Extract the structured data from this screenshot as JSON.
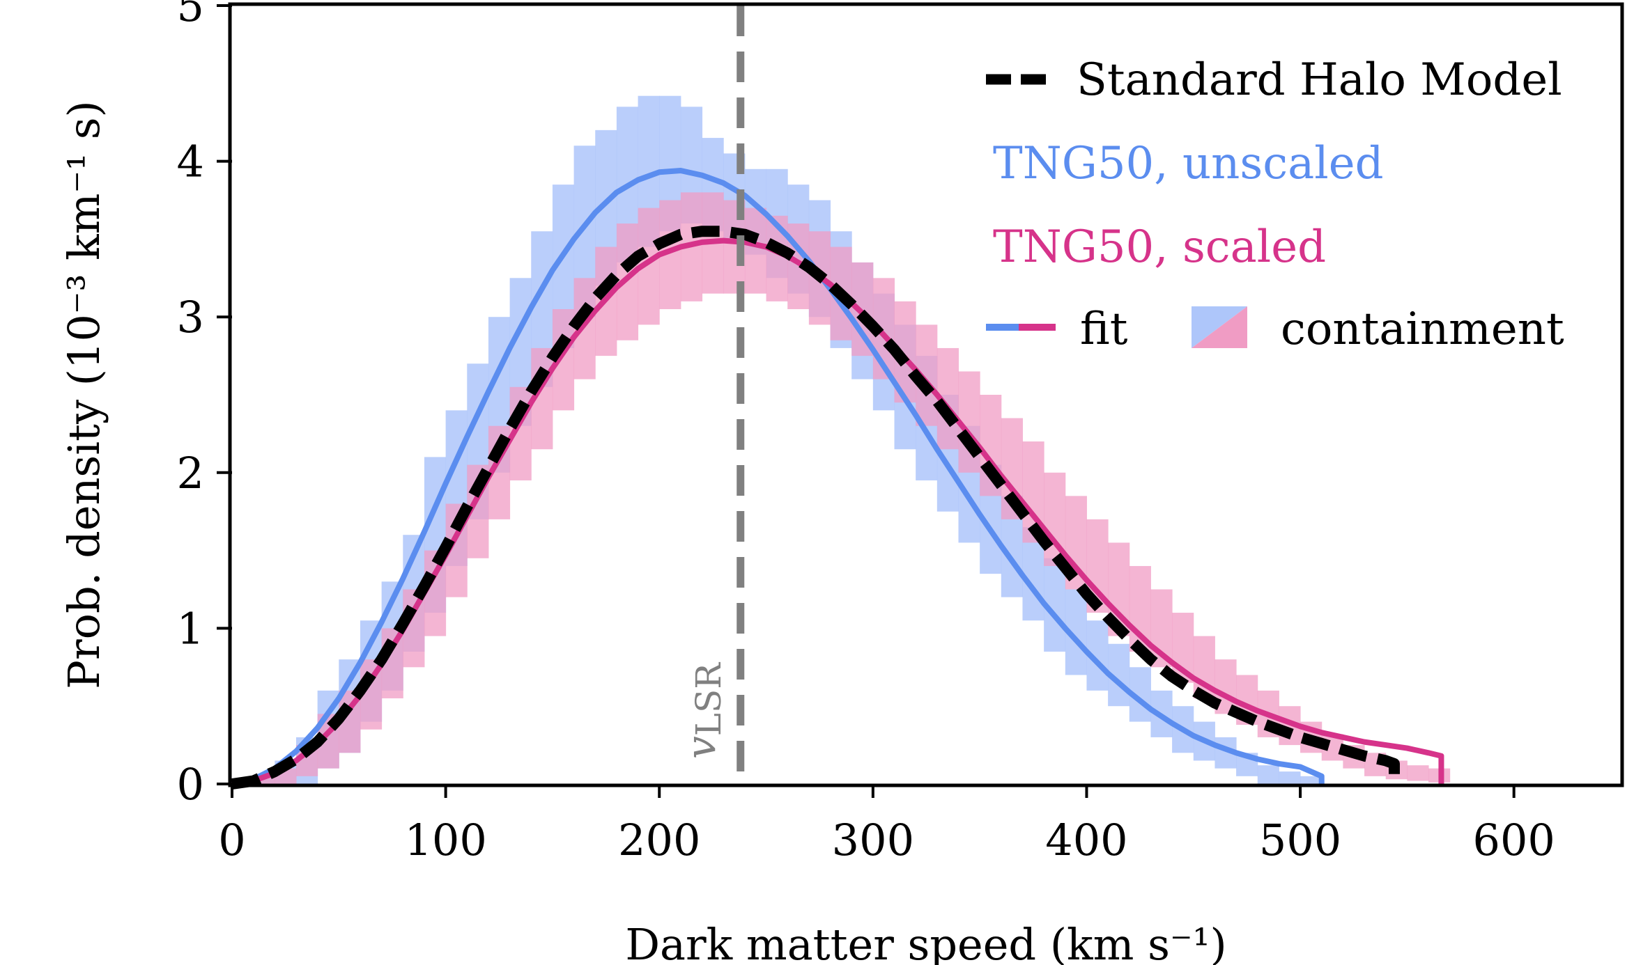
{
  "chart_data": {
    "type": "line",
    "title": "",
    "xlabel": "Dark matter speed (km s⁻¹)",
    "ylabel": "Prob. density (10⁻³ km⁻¹ s)",
    "xlim": [
      0,
      650
    ],
    "ylim": [
      0,
      5
    ],
    "xticks": [
      0,
      100,
      200,
      300,
      400,
      500,
      600
    ],
    "yticks": [
      0,
      1,
      2,
      3,
      4,
      5
    ],
    "xtick_labels": [
      "0",
      "100",
      "200",
      "300",
      "400",
      "500",
      "600"
    ],
    "ytick_labels": [
      "0",
      "1",
      "2",
      "3",
      "4",
      "5"
    ],
    "grid": false,
    "legend_position": "top-right",
    "vline": {
      "x": 238,
      "label": "v",
      "label_subscript": "LSR",
      "color": "#808080"
    },
    "series": [
      {
        "name": "Standard Halo Model",
        "style": "dashed",
        "color": "#000000",
        "x": [
          10,
          20,
          30,
          40,
          50,
          60,
          70,
          80,
          90,
          100,
          110,
          120,
          130,
          140,
          150,
          160,
          170,
          180,
          190,
          200,
          210,
          220,
          230,
          240,
          250,
          260,
          270,
          280,
          290,
          300,
          310,
          320,
          330,
          340,
          350,
          360,
          370,
          380,
          390,
          400,
          410,
          420,
          430,
          440,
          450,
          460,
          470,
          480,
          490,
          500,
          510,
          520,
          530,
          540,
          544
        ],
        "y": [
          0.02,
          0.08,
          0.16,
          0.27,
          0.42,
          0.6,
          0.8,
          1.03,
          1.27,
          1.52,
          1.78,
          2.03,
          2.28,
          2.52,
          2.74,
          2.94,
          3.12,
          3.27,
          3.39,
          3.47,
          3.53,
          3.55,
          3.55,
          3.53,
          3.48,
          3.41,
          3.32,
          3.21,
          3.08,
          2.94,
          2.79,
          2.62,
          2.46,
          2.28,
          2.1,
          1.92,
          1.74,
          1.56,
          1.39,
          1.22,
          1.07,
          0.93,
          0.8,
          0.69,
          0.6,
          0.52,
          0.46,
          0.4,
          0.35,
          0.3,
          0.26,
          0.22,
          0.18,
          0.15,
          0.13
        ]
      },
      {
        "name": "TNG50, unscaled",
        "style": "solid",
        "color": "#5b8def",
        "x": [
          10,
          20,
          30,
          40,
          50,
          60,
          70,
          80,
          90,
          100,
          110,
          120,
          130,
          140,
          150,
          160,
          170,
          180,
          190,
          200,
          210,
          220,
          230,
          240,
          250,
          260,
          270,
          280,
          290,
          300,
          310,
          320,
          330,
          340,
          350,
          360,
          370,
          380,
          390,
          400,
          410,
          420,
          430,
          440,
          450,
          460,
          470,
          480,
          490,
          500,
          510
        ],
        "y": [
          0.03,
          0.1,
          0.21,
          0.36,
          0.55,
          0.78,
          1.04,
          1.32,
          1.62,
          1.93,
          2.23,
          2.52,
          2.8,
          3.06,
          3.3,
          3.5,
          3.67,
          3.8,
          3.88,
          3.93,
          3.94,
          3.91,
          3.86,
          3.78,
          3.66,
          3.52,
          3.36,
          3.18,
          2.99,
          2.79,
          2.58,
          2.37,
          2.15,
          1.94,
          1.73,
          1.53,
          1.34,
          1.16,
          1.0,
          0.85,
          0.71,
          0.59,
          0.48,
          0.39,
          0.31,
          0.25,
          0.2,
          0.16,
          0.13,
          0.11,
          0.05
        ]
      },
      {
        "name": "TNG50, scaled",
        "style": "solid",
        "color": "#d6338a",
        "x": [
          10,
          20,
          30,
          40,
          50,
          60,
          70,
          80,
          90,
          100,
          110,
          120,
          130,
          140,
          150,
          160,
          170,
          180,
          190,
          200,
          210,
          220,
          230,
          240,
          250,
          260,
          270,
          280,
          290,
          300,
          310,
          320,
          330,
          340,
          350,
          360,
          370,
          380,
          390,
          400,
          410,
          420,
          430,
          440,
          450,
          460,
          470,
          480,
          490,
          500,
          510,
          520,
          530,
          540,
          550,
          560,
          566
        ],
        "y": [
          0.02,
          0.07,
          0.15,
          0.26,
          0.4,
          0.57,
          0.77,
          0.99,
          1.23,
          1.47,
          1.72,
          1.97,
          2.21,
          2.45,
          2.67,
          2.87,
          3.04,
          3.19,
          3.31,
          3.4,
          3.45,
          3.48,
          3.49,
          3.48,
          3.45,
          3.39,
          3.31,
          3.21,
          3.09,
          2.96,
          2.81,
          2.66,
          2.5,
          2.33,
          2.16,
          1.98,
          1.81,
          1.64,
          1.47,
          1.31,
          1.16,
          1.02,
          0.89,
          0.78,
          0.68,
          0.6,
          0.53,
          0.47,
          0.42,
          0.37,
          0.33,
          0.3,
          0.27,
          0.25,
          0.23,
          0.2,
          0.18
        ]
      }
    ],
    "bands": [
      {
        "name": "TNG50, unscaled containment",
        "color": "#aec6fa",
        "bin_width": 10,
        "x_start": 10,
        "lower": [
          0.0,
          0.0,
          0.0,
          0.1,
          0.2,
          0.4,
          0.6,
          0.85,
          1.1,
          1.4,
          1.7,
          2.0,
          2.3,
          2.55,
          2.8,
          3.0,
          3.2,
          3.35,
          3.45,
          3.55,
          3.6,
          3.55,
          3.5,
          3.4,
          3.25,
          3.15,
          3.0,
          2.8,
          2.6,
          2.4,
          2.15,
          1.95,
          1.75,
          1.55,
          1.35,
          1.2,
          1.05,
          0.85,
          0.7,
          0.6,
          0.5,
          0.4,
          0.3,
          0.2,
          0.15,
          0.1,
          0.05,
          0.0,
          0.0,
          0.0
        ],
        "upper": [
          0.05,
          0.15,
          0.3,
          0.6,
          0.8,
          1.05,
          1.3,
          1.6,
          2.1,
          2.4,
          2.7,
          3.0,
          3.25,
          3.55,
          3.85,
          4.1,
          4.2,
          4.35,
          4.42,
          4.42,
          4.35,
          4.15,
          4.05,
          3.95,
          3.95,
          3.85,
          3.75,
          3.55,
          3.35,
          3.15,
          2.95,
          2.75,
          2.5,
          2.3,
          2.05,
          1.85,
          1.65,
          1.45,
          1.25,
          1.05,
          0.9,
          0.75,
          0.6,
          0.5,
          0.4,
          0.3,
          0.2,
          0.12,
          0.08,
          0.05
        ]
      },
      {
        "name": "TNG50, scaled containment",
        "color": "#f09cc4",
        "bin_width": 10,
        "x_start": 10,
        "lower": [
          0.0,
          0.0,
          0.05,
          0.1,
          0.2,
          0.35,
          0.55,
          0.75,
          0.95,
          1.2,
          1.45,
          1.7,
          1.95,
          2.15,
          2.4,
          2.6,
          2.75,
          2.85,
          2.95,
          3.05,
          3.1,
          3.15,
          3.15,
          3.15,
          3.1,
          3.05,
          2.95,
          2.85,
          2.75,
          2.6,
          2.45,
          2.3,
          2.15,
          2.0,
          1.85,
          1.7,
          1.55,
          1.4,
          1.25,
          1.1,
          0.95,
          0.85,
          0.75,
          0.65,
          0.55,
          0.45,
          0.38,
          0.3,
          0.25,
          0.2,
          0.15,
          0.1,
          0.05,
          0.03,
          0.02,
          0.01
        ],
        "upper": [
          0.05,
          0.1,
          0.25,
          0.45,
          0.6,
          0.8,
          1.0,
          1.25,
          1.5,
          1.8,
          2.05,
          2.3,
          2.55,
          2.8,
          3.05,
          3.25,
          3.45,
          3.6,
          3.7,
          3.75,
          3.8,
          3.8,
          3.75,
          3.7,
          3.65,
          3.6,
          3.55,
          3.45,
          3.35,
          3.25,
          3.1,
          2.95,
          2.8,
          2.65,
          2.5,
          2.35,
          2.2,
          2.0,
          1.85,
          1.7,
          1.55,
          1.4,
          1.25,
          1.1,
          0.95,
          0.8,
          0.7,
          0.6,
          0.5,
          0.4,
          0.32,
          0.25,
          0.2,
          0.15,
          0.12,
          0.1
        ]
      }
    ],
    "legend": [
      {
        "label": "Standard Halo Model",
        "color": "#000000"
      },
      {
        "label": "TNG50, unscaled",
        "color": "#5b8def"
      },
      {
        "label": "TNG50, scaled",
        "color": "#d6338a"
      },
      {
        "label": "fit",
        "color": "#000000"
      },
      {
        "label": "containment",
        "color": "#000000"
      }
    ]
  }
}
